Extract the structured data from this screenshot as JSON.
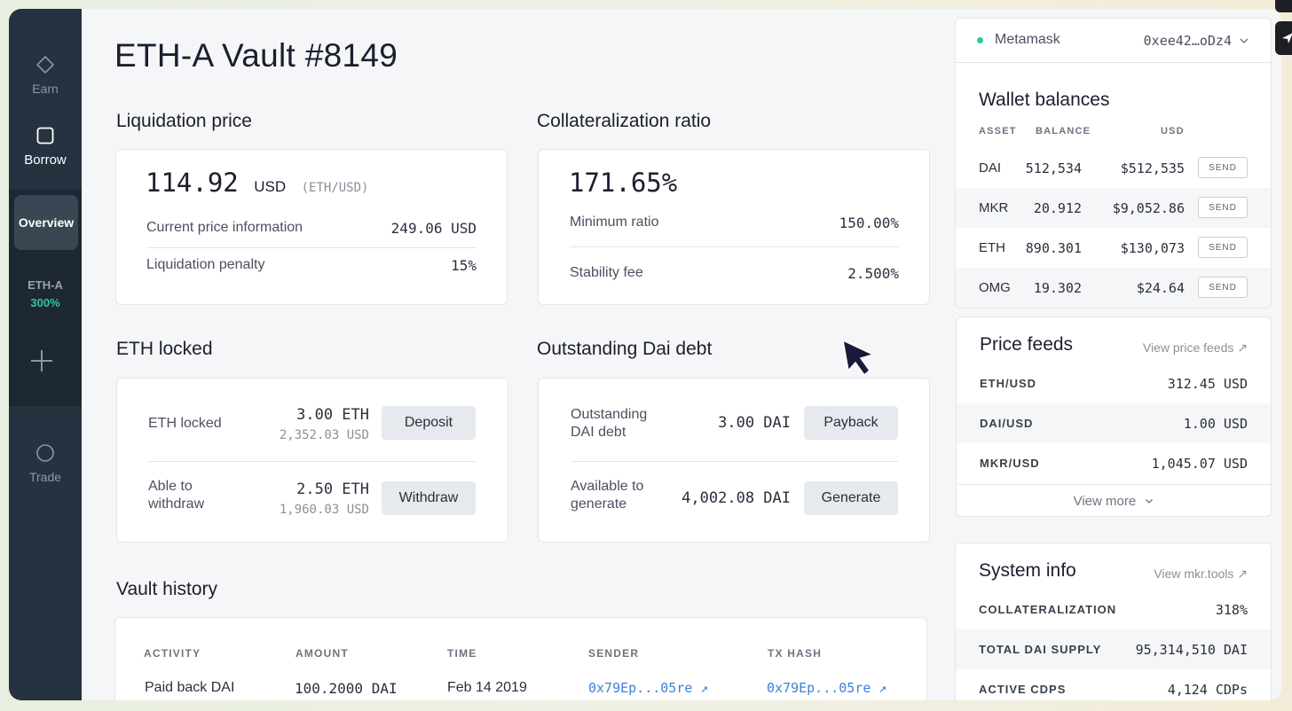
{
  "sidebar": {
    "earn": "Earn",
    "borrow": "Borrow",
    "overview": "Overview",
    "vault_type": "ETH-A",
    "vault_ratio": "300%",
    "trade": "Trade"
  },
  "page": {
    "title": "ETH-A Vault #8149"
  },
  "liquidation": {
    "title": "Liquidation price",
    "value": "114.92",
    "unit": "USD",
    "pair": "(ETH/USD)",
    "rows": [
      {
        "label": "Current price information",
        "value": "249.06 USD"
      },
      {
        "label": "Liquidation penalty",
        "value": "15%"
      }
    ]
  },
  "collateral": {
    "title": "Collateralization ratio",
    "value": "171.65%",
    "rows": [
      {
        "label": "Minimum ratio",
        "value": "150.00%"
      },
      {
        "label": "Stability fee",
        "value": "2.500%"
      }
    ]
  },
  "eth_locked": {
    "title": "ETH locked",
    "rows": [
      {
        "label": "ETH locked",
        "value": "3.00 ETH",
        "sub": "2,352.03 USD",
        "button": "Deposit"
      },
      {
        "label_1": "Able to",
        "label_2": "withdraw",
        "value": "2.50 ETH",
        "sub": "1,960.03 USD",
        "button": "Withdraw"
      }
    ]
  },
  "dai_debt": {
    "title": "Outstanding Dai debt",
    "rows": [
      {
        "label_1": "Outstanding",
        "label_2": "DAI debt",
        "value": "3.00 DAI",
        "button": "Payback"
      },
      {
        "label_1": "Available to",
        "label_2": "generate",
        "value": "4,002.08 DAI",
        "button": "Generate"
      }
    ]
  },
  "history": {
    "title": "Vault history",
    "headers": [
      "ACTIVITY",
      "AMOUNT",
      "TIME",
      "SENDER",
      "TX HASH"
    ],
    "rows": [
      {
        "activity": "Paid back DAI",
        "amount": "100.2000 DAI",
        "time": "Feb 14 2019",
        "sender": "0x79Ep...05re ↗",
        "tx_hash": "0x79Ep...05re ↗"
      }
    ]
  },
  "wallet": {
    "provider": "Metamask",
    "address": "0xee42…oDz4",
    "status_color": "#34c6a0"
  },
  "balances": {
    "title": "Wallet balances",
    "headers": [
      "ASSET",
      "BALANCE",
      "USD"
    ],
    "send_label": "SEND",
    "rows": [
      {
        "asset": "DAI",
        "balance": "512,534",
        "usd": "$512,535"
      },
      {
        "asset": "MKR",
        "balance": "20.912",
        "usd": "$9,052.86"
      },
      {
        "asset": "ETH",
        "balance": "890.301",
        "usd": "$130,073"
      },
      {
        "asset": "OMG",
        "balance": "19.302",
        "usd": "$24.64"
      }
    ]
  },
  "price_feeds": {
    "title": "Price feeds",
    "link": "View price feeds ↗",
    "rows": [
      {
        "pair": "ETH/USD",
        "value": "312.45 USD"
      },
      {
        "pair": "DAI/USD",
        "value": "1.00 USD"
      },
      {
        "pair": "MKR/USD",
        "value": "1,045.07 USD"
      }
    ],
    "more": "View more"
  },
  "system": {
    "title": "System info",
    "link": "View mkr.tools ↗",
    "rows": [
      {
        "label": "COLLATERALIZATION",
        "value": "318%"
      },
      {
        "label": "TOTAL DAI SUPPLY",
        "value": "95,314,510 DAI"
      },
      {
        "label": "ACTIVE CDPS",
        "value": "4,124 CDPs"
      }
    ]
  }
}
